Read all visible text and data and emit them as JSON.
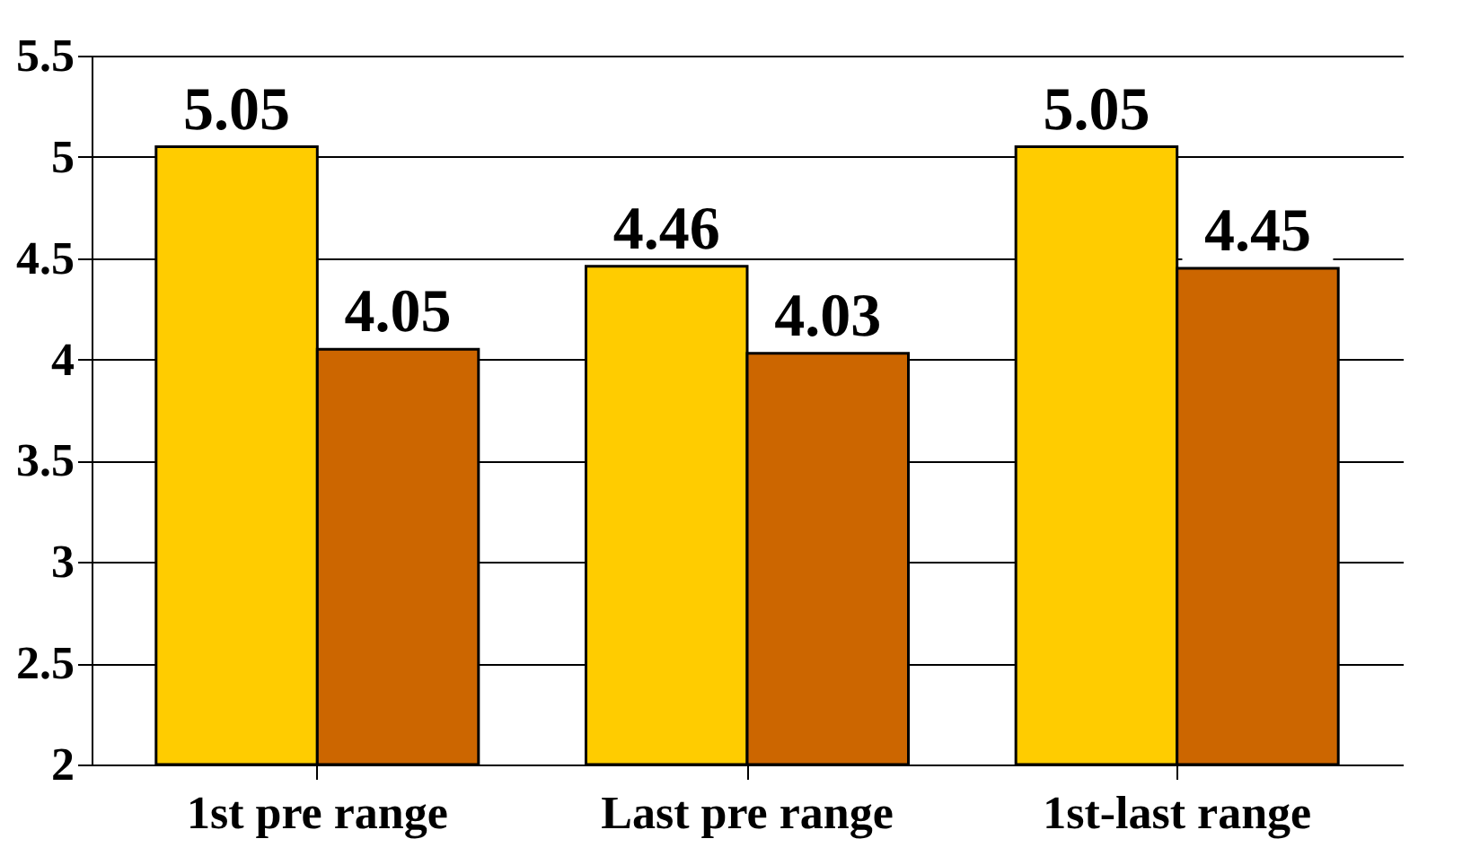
{
  "chart_data": {
    "type": "bar",
    "categories": [
      "1st pre range",
      "Last pre range",
      "1st-last range"
    ],
    "series": [
      {
        "color": "#ffcc00",
        "values": [
          5.05,
          4.46,
          5.05
        ]
      },
      {
        "color": "#cc6600",
        "values": [
          4.05,
          4.03,
          4.45
        ]
      }
    ],
    "ylim": [
      2,
      5.5
    ],
    "yticks": [
      2,
      2.5,
      3,
      3.5,
      4,
      4.5,
      5,
      5.5
    ],
    "grid": "y",
    "data_labels": true
  }
}
